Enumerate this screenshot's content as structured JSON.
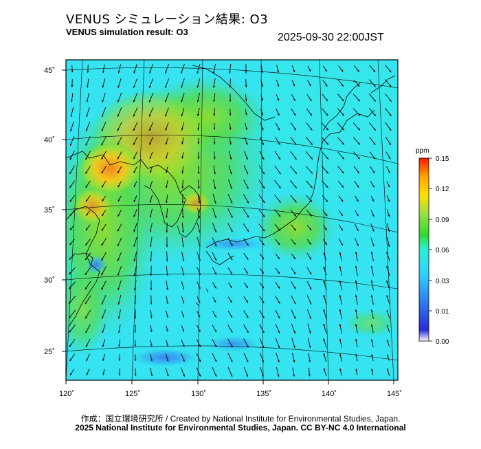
{
  "title_jp": "VENUS シミュレーション結果: O3",
  "title_en": "VENUS simulation result: O3",
  "timestamp": "2025-09-30 22:00JST",
  "map": {
    "lon_labels": [
      "120˚",
      "125˚",
      "130˚",
      "135˚",
      "140˚",
      "145˚"
    ],
    "lat_labels": [
      "45˚",
      "40˚",
      "35˚",
      "30˚",
      "25˚"
    ],
    "field_colors": {
      "cyan": "#33e6f5",
      "aqua": "#2ef0d6",
      "green": "#5cdc3c",
      "yellowgreen": "#a7e032",
      "yellow": "#e6d92a",
      "orange": "#f0a01e",
      "blue": "#3a6fe8",
      "land_line": "#000000"
    }
  },
  "colorbar": {
    "unit": "ppm",
    "ticks": [
      "0.15",
      "0.12",
      "0.09",
      "0.06",
      "0.03",
      "0.01",
      "0.00"
    ],
    "colors": [
      "#ff1a00",
      "#ffa200",
      "#ffe100",
      "#9fe040",
      "#2fdb2f",
      "#2ef0d6",
      "#2fd0ff",
      "#2f7ff0",
      "#2a2bd8",
      "#ffffff"
    ]
  },
  "credits": {
    "line1": "作成：国立環境研究所 / Created by National Institute for Environmental Studies, Japan.",
    "line2": "2025 National Institute for Environmental Studies, Japan. CC BY-NC 4.0 International"
  }
}
